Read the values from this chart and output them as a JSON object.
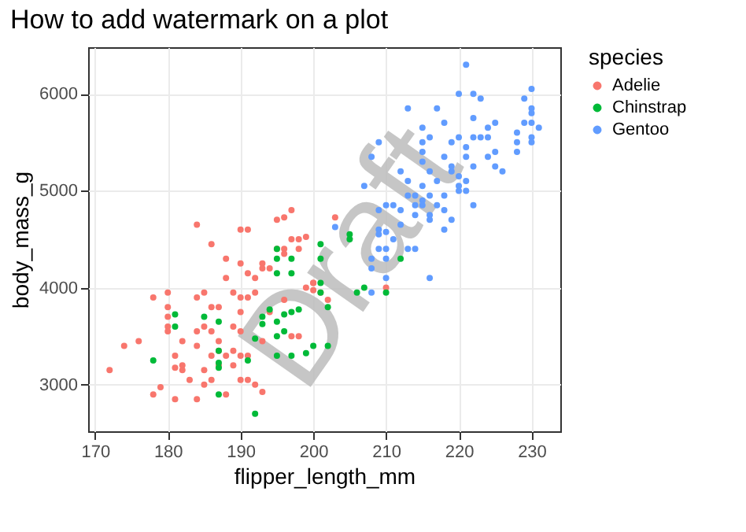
{
  "chart_data": {
    "type": "scatter",
    "title": "How to add watermark on a plot",
    "xlabel": "flipper_length_mm",
    "ylabel": "body_mass_g",
    "legend_title": "species",
    "legend": "right",
    "grid": true,
    "marker": "circle",
    "xlim": [
      169.05,
      233.95
    ],
    "xticks": [
      170,
      180,
      190,
      200,
      210,
      220,
      230
    ],
    "ylim": [
      2520,
      6480
    ],
    "yticks": [
      3000,
      4000,
      5000,
      6000
    ],
    "annotations": [
      "Draft"
    ],
    "series": [
      {
        "name": "Adelie",
        "color": "#f8766d",
        "x": [
          172,
          174,
          176,
          178,
          178,
          179,
          180,
          180,
          180,
          180,
          180,
          181,
          181,
          181,
          182,
          182,
          182,
          183,
          184,
          184,
          184,
          184,
          184,
          185,
          185,
          185,
          185,
          186,
          186,
          186,
          186,
          186,
          187,
          187,
          187,
          187,
          188,
          188,
          188,
          188,
          189,
          189,
          189,
          189,
          190,
          190,
          190,
          190,
          190,
          190,
          190,
          191,
          191,
          191,
          191,
          191,
          192,
          192,
          192,
          193,
          193,
          193,
          193,
          194,
          194,
          195,
          195,
          196,
          196,
          196,
          196,
          197,
          197,
          197,
          198,
          198,
          198,
          199,
          199,
          200,
          201,
          203,
          200,
          200,
          202,
          210
        ],
        "values": [
          3150,
          3400,
          3450,
          3900,
          2900,
          2975,
          3950,
          3800,
          3700,
          3600,
          3550,
          3300,
          3175,
          2850,
          3450,
          3200,
          3150,
          3050,
          4650,
          3900,
          3550,
          3400,
          2850,
          3950,
          3600,
          3150,
          3000,
          4450,
          3800,
          3550,
          3300,
          3050,
          3800,
          3450,
          3350,
          3200,
          4300,
          4100,
          3300,
          2900,
          3950,
          3600,
          3350,
          3200,
          4600,
          4250,
          3900,
          3750,
          3550,
          3300,
          3050,
          4600,
          4150,
          3900,
          3300,
          3050,
          4100,
          3950,
          3000,
          4250,
          4200,
          2925,
          3450,
          4200,
          3750,
          4700,
          4400,
          4725,
          4400,
          4350,
          3875,
          4800,
          4500,
          3500,
          4500,
          4400,
          3500,
          4525,
          4000,
          4050,
          3950,
          4725,
          4050,
          3975,
          3875,
          4000
        ]
      },
      {
        "name": "Chinstrap",
        "color": "#00ba38",
        "x": [
          178,
          181,
          181,
          185,
          187,
          187,
          187,
          187,
          187,
          191,
          192,
          192,
          193,
          193,
          194,
          195,
          195,
          195,
          195,
          195,
          195,
          196,
          196,
          197,
          197,
          197,
          197,
          198,
          199,
          200,
          201,
          201,
          201,
          202,
          205,
          205,
          201,
          202,
          206,
          207,
          210,
          212
        ],
        "values": [
          3250,
          3725,
          3600,
          3700,
          3650,
          3350,
          3225,
          3175,
          2900,
          3250,
          3475,
          2700,
          3625,
          3700,
          3775,
          4400,
          4300,
          4150,
          3650,
          3500,
          3300,
          3550,
          3725,
          4300,
          4150,
          3750,
          3300,
          3775,
          3325,
          3400,
          4050,
          4450,
          4300,
          3800,
          4550,
          4500,
          3950,
          3400,
          3950,
          4000,
          3950,
          4300
        ]
      },
      {
        "name": "Gentoo",
        "color": "#619cff",
        "x": [
          221,
          220,
          222,
          223,
          213,
          217,
          222,
          230,
          229,
          230,
          230,
          229,
          230,
          231,
          218,
          215,
          225,
          224,
          228,
          222,
          223,
          224,
          220,
          216,
          209,
          215,
          219,
          230,
          230,
          228,
          221,
          215,
          225,
          228,
          208,
          221,
          218,
          215,
          222,
          224,
          225,
          226,
          212,
          219,
          219,
          216,
          220,
          221,
          213,
          207,
          217,
          220,
          220,
          221,
          215,
          213,
          214,
          216,
          218,
          211,
          215,
          217,
          222,
          209,
          210,
          214,
          215,
          216,
          216,
          212,
          218,
          203,
          209,
          210,
          212,
          214,
          219,
          218,
          211,
          209,
          210,
          213,
          214,
          210,
          208,
          208,
          216,
          208,
          210,
          209
        ],
        "values": [
          6300,
          6000,
          6000,
          5950,
          5850,
          5850,
          5750,
          6050,
          5950,
          5850,
          5800,
          5700,
          5700,
          5650,
          5700,
          5650,
          5700,
          5650,
          5600,
          5550,
          5550,
          5550,
          5550,
          5550,
          5500,
          5500,
          5500,
          5550,
          5500,
          5500,
          5450,
          5400,
          5400,
          5400,
          5350,
          5350,
          5350,
          5300,
          5250,
          5350,
          5250,
          5200,
          5200,
          5250,
          5200,
          5200,
          5150,
          5100,
          5100,
          5050,
          5100,
          5050,
          5000,
          5000,
          5050,
          4950,
          4950,
          4950,
          4950,
          4850,
          4900,
          4850,
          4850,
          4800,
          4850,
          4850,
          4850,
          4750,
          4700,
          4800,
          4800,
          4625,
          4600,
          4575,
          4650,
          4750,
          4700,
          4600,
          4500,
          4400,
          4400,
          4400,
          4400,
          4300,
          4300,
          4200,
          4100,
          3950,
          4100,
          4550
        ]
      }
    ]
  }
}
